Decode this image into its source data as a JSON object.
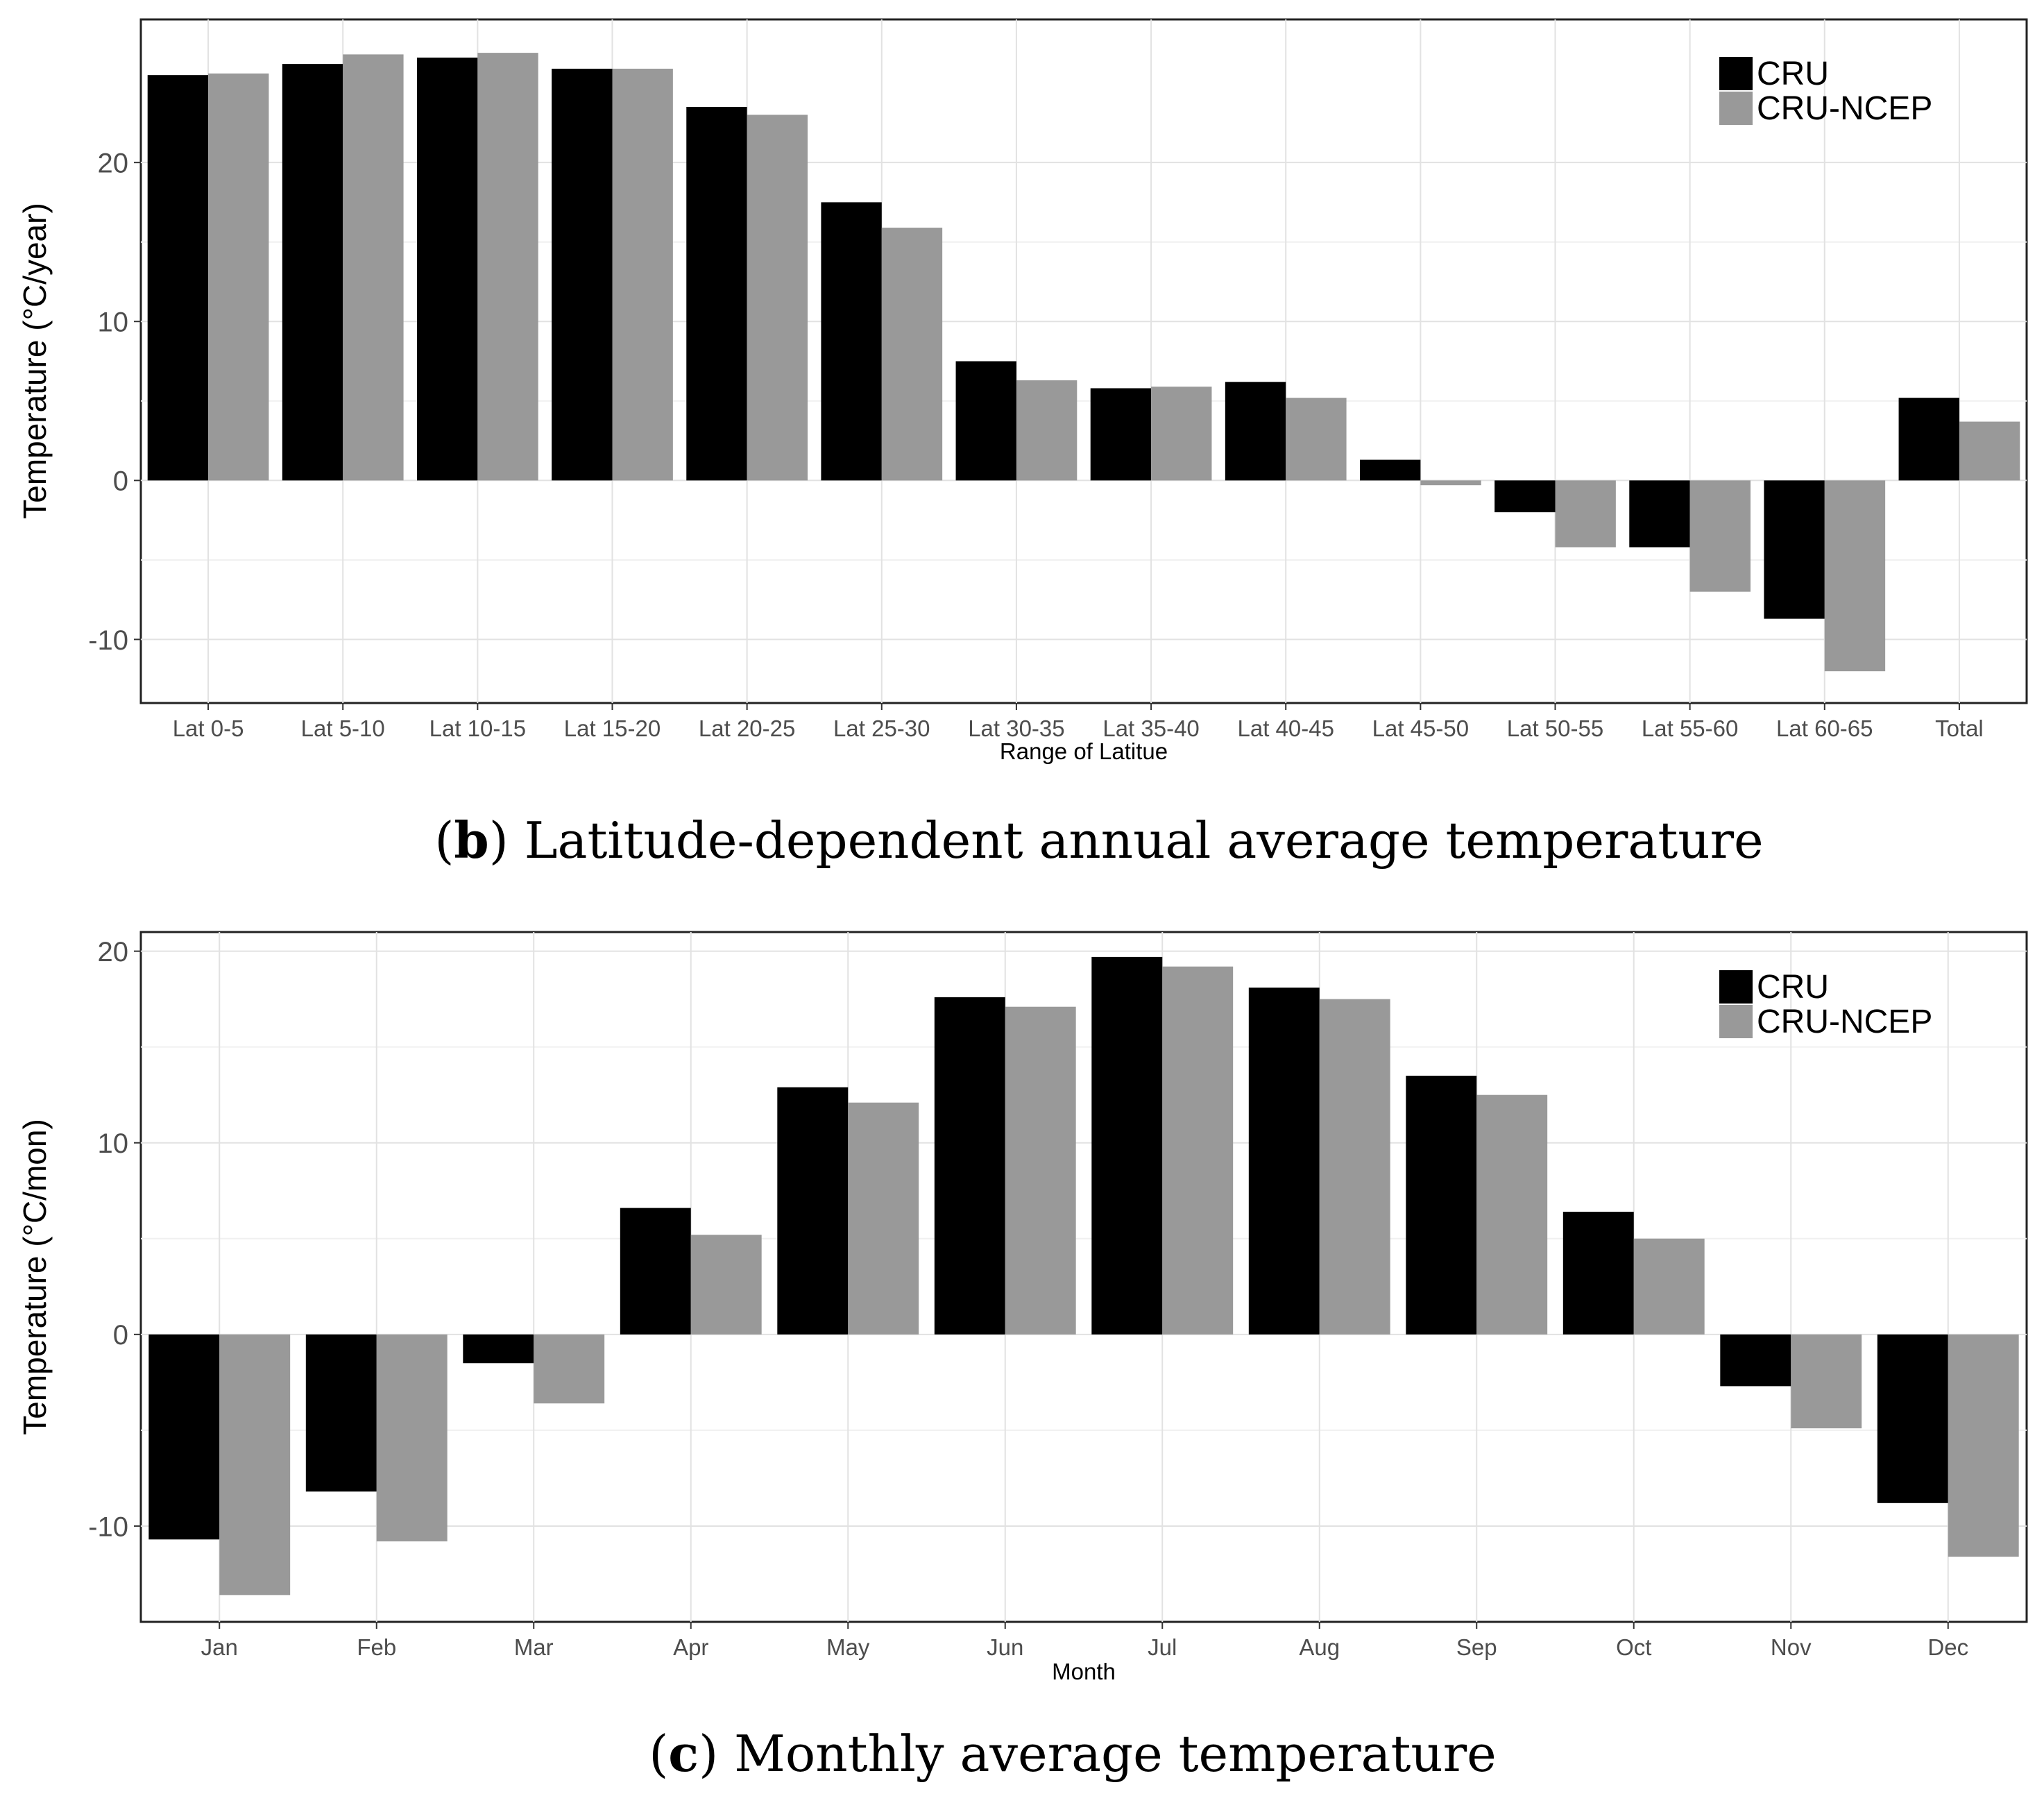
{
  "chart_data": [
    {
      "type": "bar",
      "panel": "b",
      "categories": [
        "Lat 0-5",
        "Lat 5-10",
        "Lat 10-15",
        "Lat 15-20",
        "Lat 20-25",
        "Lat 25-30",
        "Lat 30-35",
        "Lat 35-40",
        "Lat 40-45",
        "Lat 45-50",
        "Lat 50-55",
        "Lat 55-60",
        "Lat 60-65",
        "Total"
      ],
      "series": [
        {
          "name": "CRU",
          "color": "#000000",
          "values": [
            25.5,
            26.2,
            26.6,
            25.9,
            23.5,
            17.5,
            7.5,
            5.8,
            6.2,
            1.3,
            -2.0,
            -4.2,
            -8.7,
            5.2
          ]
        },
        {
          "name": "CRU-NCEP",
          "color": "#999999",
          "values": [
            25.6,
            26.8,
            26.9,
            25.9,
            23.0,
            15.9,
            6.3,
            5.9,
            5.2,
            -0.3,
            -4.2,
            -7.0,
            -12.0,
            3.7
          ]
        }
      ],
      "xlabel": "Range of Latitue",
      "ylabel": "Temperature (°C/year)",
      "ylim": [
        -14,
        29
      ],
      "yticks": [
        -10,
        0,
        10,
        20
      ],
      "legend": [
        "CRU",
        "CRU-NCEP"
      ],
      "legend_position": "top-right",
      "caption_letter": "b",
      "caption_text": " Latitude-dependent annual average temperature",
      "caption_paren_open": "(",
      "caption_paren_close": ")"
    },
    {
      "type": "bar",
      "panel": "c",
      "categories": [
        "Jan",
        "Feb",
        "Mar",
        "Apr",
        "May",
        "Jun",
        "Jul",
        "Aug",
        "Sep",
        "Oct",
        "Nov",
        "Dec"
      ],
      "series": [
        {
          "name": "CRU",
          "color": "#000000",
          "values": [
            -10.7,
            -8.2,
            -1.5,
            6.6,
            12.9,
            17.6,
            19.7,
            18.1,
            13.5,
            6.4,
            -2.7,
            -8.8
          ]
        },
        {
          "name": "CRU-NCEP",
          "color": "#999999",
          "values": [
            -13.6,
            -10.8,
            -3.6,
            5.2,
            12.1,
            17.1,
            19.2,
            17.5,
            12.5,
            5.0,
            -4.9,
            -11.6
          ]
        }
      ],
      "xlabel": "Month",
      "ylabel": "Temperature (°C/mon)",
      "ylim": [
        -15,
        21
      ],
      "yticks": [
        -10,
        0,
        10,
        20
      ],
      "legend": [
        "CRU",
        "CRU-NCEP"
      ],
      "legend_position": "top-right",
      "caption_letter": "c",
      "caption_text": " Monthly average temperature",
      "caption_paren_open": "(",
      "caption_paren_close": ")"
    }
  ]
}
